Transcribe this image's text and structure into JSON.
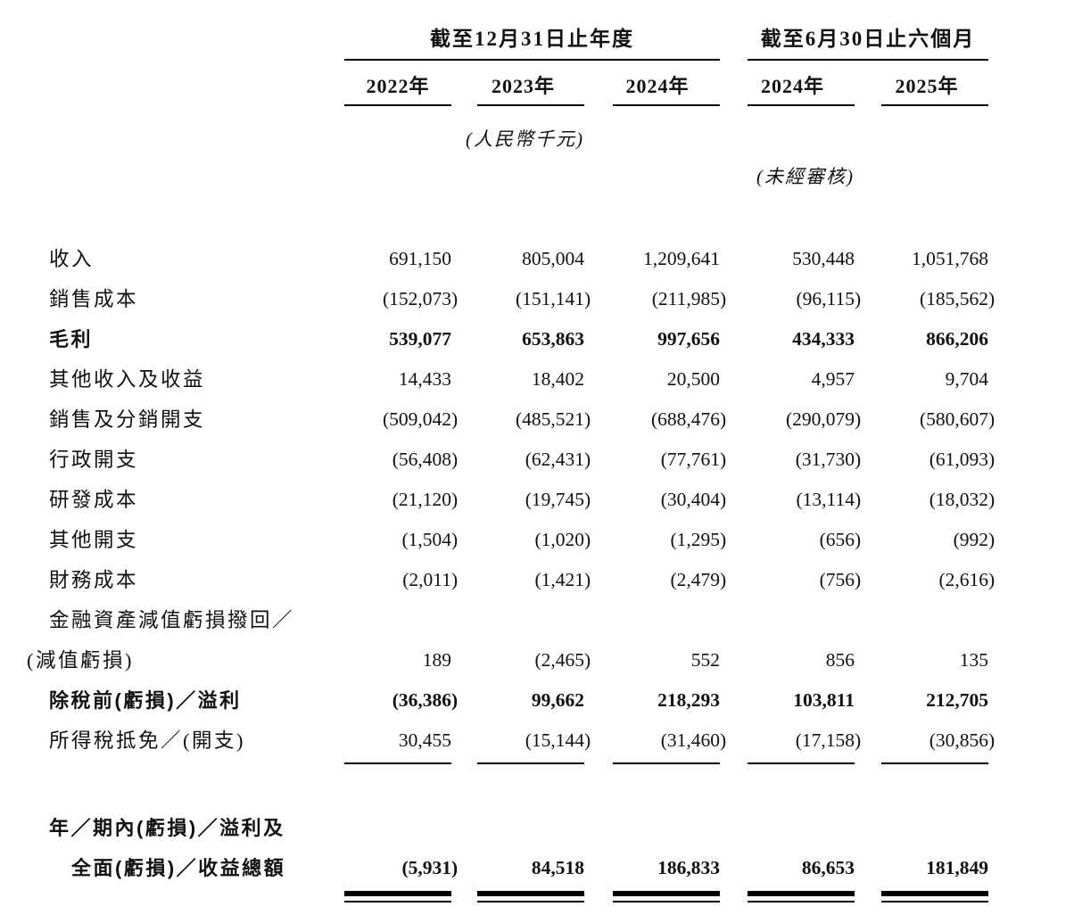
{
  "table": {
    "header": {
      "groups": [
        {
          "label": "截至12月31日止年度",
          "columns_span": 3
        },
        {
          "label": "截至6月30日止六個月",
          "columns_span": 2
        }
      ],
      "columns": [
        "2022年",
        "2023年",
        "2024年",
        "2024年",
        "2025年"
      ],
      "currency_note": "(人民幣千元)",
      "unaudited_note": "(未經審核)"
    },
    "rows": [
      {
        "label": "收入",
        "bold": false,
        "indent": 0,
        "values": [
          "691,150",
          "805,004",
          "1,209,641",
          "530,448",
          "1,051,768"
        ]
      },
      {
        "label": "銷售成本",
        "bold": false,
        "indent": 0,
        "values": [
          "(152,073)",
          "(151,141)",
          "(211,985)",
          "(96,115)",
          "(185,562)"
        ]
      },
      {
        "label": "毛利",
        "bold": true,
        "indent": 0,
        "values": [
          "539,077",
          "653,863",
          "997,656",
          "434,333",
          "866,206"
        ]
      },
      {
        "label": "其他收入及收益",
        "bold": false,
        "indent": 0,
        "values": [
          "14,433",
          "18,402",
          "20,500",
          "4,957",
          "9,704"
        ]
      },
      {
        "label": "銷售及分銷開支",
        "bold": false,
        "indent": 0,
        "values": [
          "(509,042)",
          "(485,521)",
          "(688,476)",
          "(290,079)",
          "(580,607)"
        ]
      },
      {
        "label": "行政開支",
        "bold": false,
        "indent": 0,
        "values": [
          "(56,408)",
          "(62,431)",
          "(77,761)",
          "(31,730)",
          "(61,093)"
        ]
      },
      {
        "label": "研發成本",
        "bold": false,
        "indent": 0,
        "values": [
          "(21,120)",
          "(19,745)",
          "(30,404)",
          "(13,114)",
          "(18,032)"
        ]
      },
      {
        "label": "其他開支",
        "bold": false,
        "indent": 0,
        "values": [
          "(1,504)",
          "(1,020)",
          "(1,295)",
          "(656)",
          "(992)"
        ]
      },
      {
        "label": "財務成本",
        "bold": false,
        "indent": 0,
        "values": [
          "(2,011)",
          "(1,421)",
          "(2,479)",
          "(756)",
          "(2,616)"
        ]
      },
      {
        "label": "金融資產減值虧損撥回／",
        "bold": false,
        "indent": 0,
        "values": [
          "",
          "",
          "",
          "",
          ""
        ]
      },
      {
        "label": "(減值虧損)",
        "bold": false,
        "indent": 1,
        "values": [
          "189",
          "(2,465)",
          "552",
          "856",
          "135"
        ]
      },
      {
        "label": "除稅前(虧損)／溢利",
        "bold": true,
        "indent": 0,
        "values": [
          "(36,386)",
          "99,662",
          "218,293",
          "103,811",
          "212,705"
        ]
      },
      {
        "label": "所得稅抵免／(開支)",
        "bold": false,
        "indent": 0,
        "values": [
          "30,455",
          "(15,144)",
          "(31,460)",
          "(17,158)",
          "(30,856)"
        ],
        "rule_below": "single"
      },
      {
        "label": "年／期內(虧損)／溢利及",
        "bold": true,
        "indent": 0,
        "values": [
          "",
          "",
          "",
          "",
          ""
        ],
        "spacer_before": true
      },
      {
        "label": "全面(虧損)／收益總額",
        "bold": true,
        "indent": 2,
        "values": [
          "(5,931)",
          "84,518",
          "186,833",
          "86,653",
          "181,849"
        ],
        "rule_below": "double"
      }
    ]
  }
}
